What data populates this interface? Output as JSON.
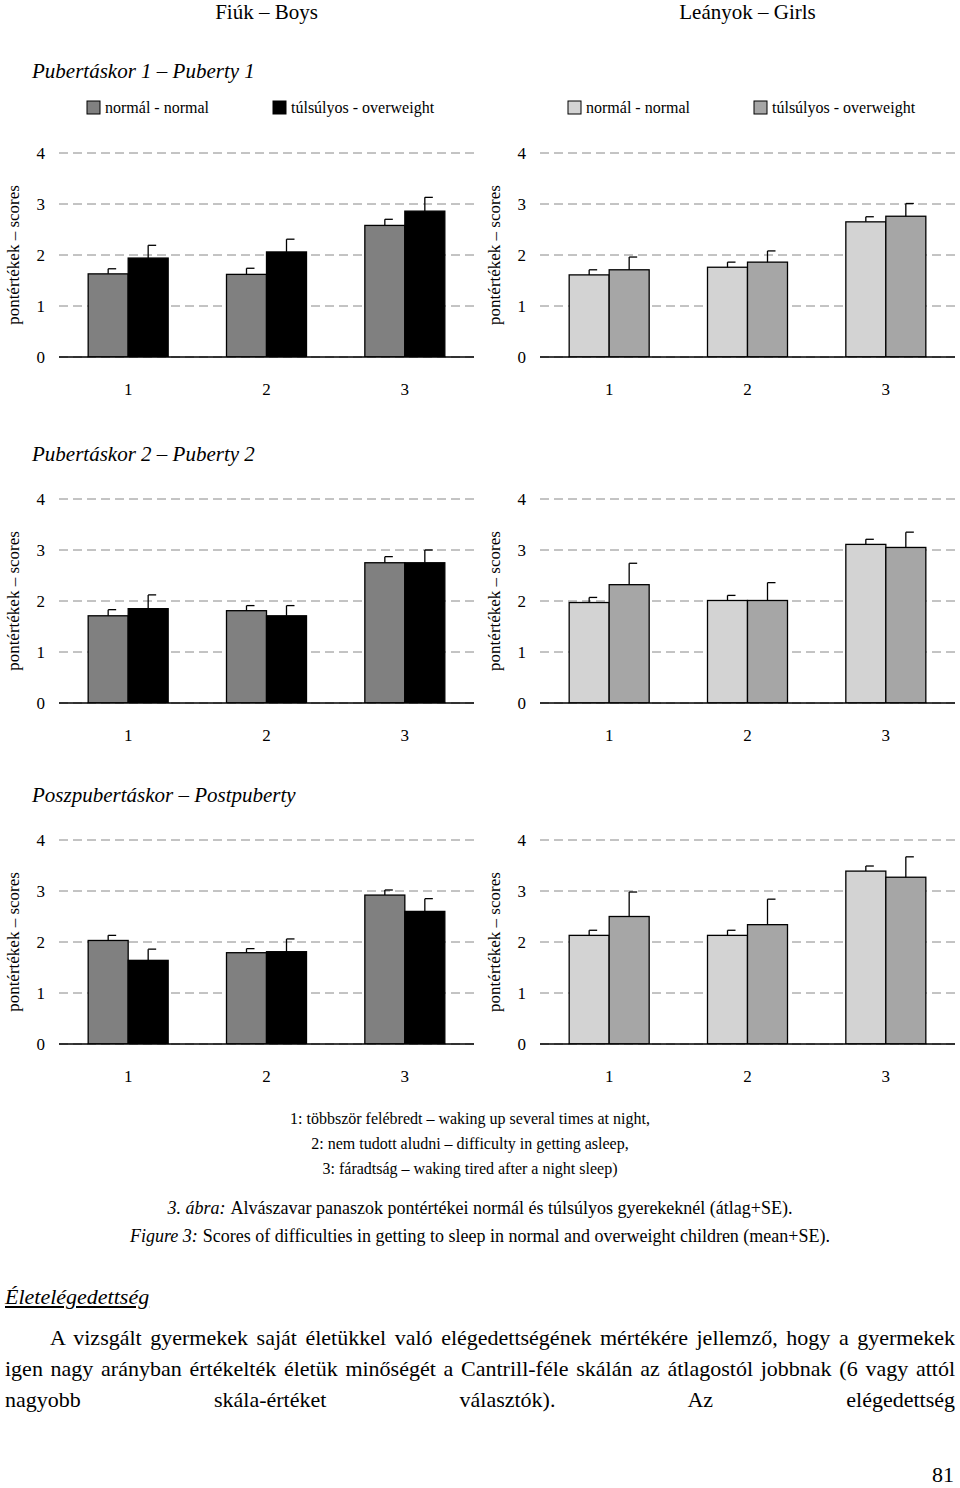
{
  "chart_data": [
    {
      "type": "bar",
      "title": "Pubertáskor 1 – Puberty 1",
      "y_label": "pontértékek – scores",
      "categories": [
        "1",
        "2",
        "3"
      ],
      "ylim": [
        0,
        4
      ],
      "yticks": [
        0,
        1,
        2,
        3,
        4
      ],
      "grid": true,
      "legend": "top",
      "series": [
        {
          "name": "normál - normal",
          "color": "#808080",
          "values": [
            1.63,
            1.62,
            2.58
          ],
          "errors": [
            0.1,
            0.12,
            0.12
          ]
        },
        {
          "name": "túlsúlyos - overweight",
          "color": "#000000",
          "values": [
            1.94,
            2.06,
            2.86
          ],
          "errors": [
            0.25,
            0.25,
            0.27
          ]
        }
      ]
    },
    {
      "type": "bar",
      "y_label": "pontértékek – scores",
      "categories": [
        "1",
        "2",
        "3"
      ],
      "ylim": [
        0,
        4
      ],
      "yticks": [
        0,
        1,
        2,
        3,
        4
      ],
      "grid": true,
      "legend": "top",
      "series": [
        {
          "name": "normál - normal",
          "color": "#d3d3d3",
          "values": [
            1.61,
            1.76,
            2.65
          ],
          "errors": [
            0.1,
            0.1,
            0.1
          ]
        },
        {
          "name": "túlsúlyos - overweight",
          "color": "#a6a6a6",
          "values": [
            1.71,
            1.86,
            2.76
          ],
          "errors": [
            0.25,
            0.22,
            0.25
          ]
        }
      ]
    },
    {
      "type": "bar",
      "title": "Pubertáskor 2 – Puberty 2",
      "y_label": "pontértékek – scores",
      "categories": [
        "1",
        "2",
        "3"
      ],
      "ylim": [
        0,
        4
      ],
      "yticks": [
        0,
        1,
        2,
        3,
        4
      ],
      "grid": true,
      "series": [
        {
          "color": "#808080",
          "values": [
            1.71,
            1.81,
            2.75
          ],
          "errors": [
            0.12,
            0.1,
            0.12
          ]
        },
        {
          "color": "#000000",
          "values": [
            1.85,
            1.71,
            2.75
          ],
          "errors": [
            0.27,
            0.2,
            0.25
          ]
        }
      ]
    },
    {
      "type": "bar",
      "y_label": "pontértékek – scores",
      "categories": [
        "1",
        "2",
        "3"
      ],
      "ylim": [
        0,
        4
      ],
      "yticks": [
        0,
        1,
        2,
        3,
        4
      ],
      "grid": true,
      "series": [
        {
          "color": "#d3d3d3",
          "values": [
            1.97,
            2.01,
            3.11
          ],
          "errors": [
            0.1,
            0.1,
            0.1
          ]
        },
        {
          "color": "#a6a6a6",
          "values": [
            2.32,
            2.01,
            3.05
          ],
          "errors": [
            0.42,
            0.35,
            0.3
          ]
        }
      ]
    },
    {
      "type": "bar",
      "title": "Poszpubertáskor – Postpuberty",
      "y_label": "pontértékek – scores",
      "categories": [
        "1",
        "2",
        "3"
      ],
      "ylim": [
        0,
        4
      ],
      "yticks": [
        0,
        1,
        2,
        3,
        4
      ],
      "grid": true,
      "series": [
        {
          "color": "#808080",
          "values": [
            2.03,
            1.79,
            2.92
          ],
          "errors": [
            0.1,
            0.08,
            0.1
          ]
        },
        {
          "color": "#000000",
          "values": [
            1.64,
            1.81,
            2.6
          ],
          "errors": [
            0.22,
            0.25,
            0.25
          ]
        }
      ]
    },
    {
      "type": "bar",
      "y_label": "pontértékek – scores",
      "categories": [
        "1",
        "2",
        "3"
      ],
      "ylim": [
        0,
        4
      ],
      "yticks": [
        0,
        1,
        2,
        3,
        4
      ],
      "grid": true,
      "series": [
        {
          "color": "#d3d3d3",
          "values": [
            2.13,
            2.13,
            3.39
          ],
          "errors": [
            0.1,
            0.1,
            0.1
          ]
        },
        {
          "color": "#a6a6a6",
          "values": [
            2.5,
            2.34,
            3.27
          ],
          "errors": [
            0.48,
            0.5,
            0.4
          ]
        }
      ]
    }
  ],
  "page": {
    "headers": [
      "Fiúk – Boys",
      "Leányok – Girls"
    ],
    "notes": [
      "1: többször felébredt – waking up several times at night,",
      "2: nem tudott aludni – difficulty in getting asleep,",
      "3: fáradtság – waking tired after a night sleep)"
    ],
    "caption_hu": {
      "label": "3. ábra:",
      "text": "Alvászavar panaszok pontértékei normál és túlsúlyos gyerekeknél (átlag+SE)."
    },
    "caption_en": {
      "label": "Figure 3:",
      "text": "Scores of difficulties in getting to sleep in normal and overweight children (mean+SE)."
    },
    "section_title": "Életelégedettség",
    "paragraph": "A vizsgált gyermekek saját életükkel való elégedettségének mértékére jellemző, hogy a gyermekek igen nagy arányban értékelték életük minőségét a Cantrill-féle skálán az átlagostól jobbnak (6 vagy attól nagyobb skála-értéket választók). Az elégedettség",
    "page_number": "81"
  }
}
